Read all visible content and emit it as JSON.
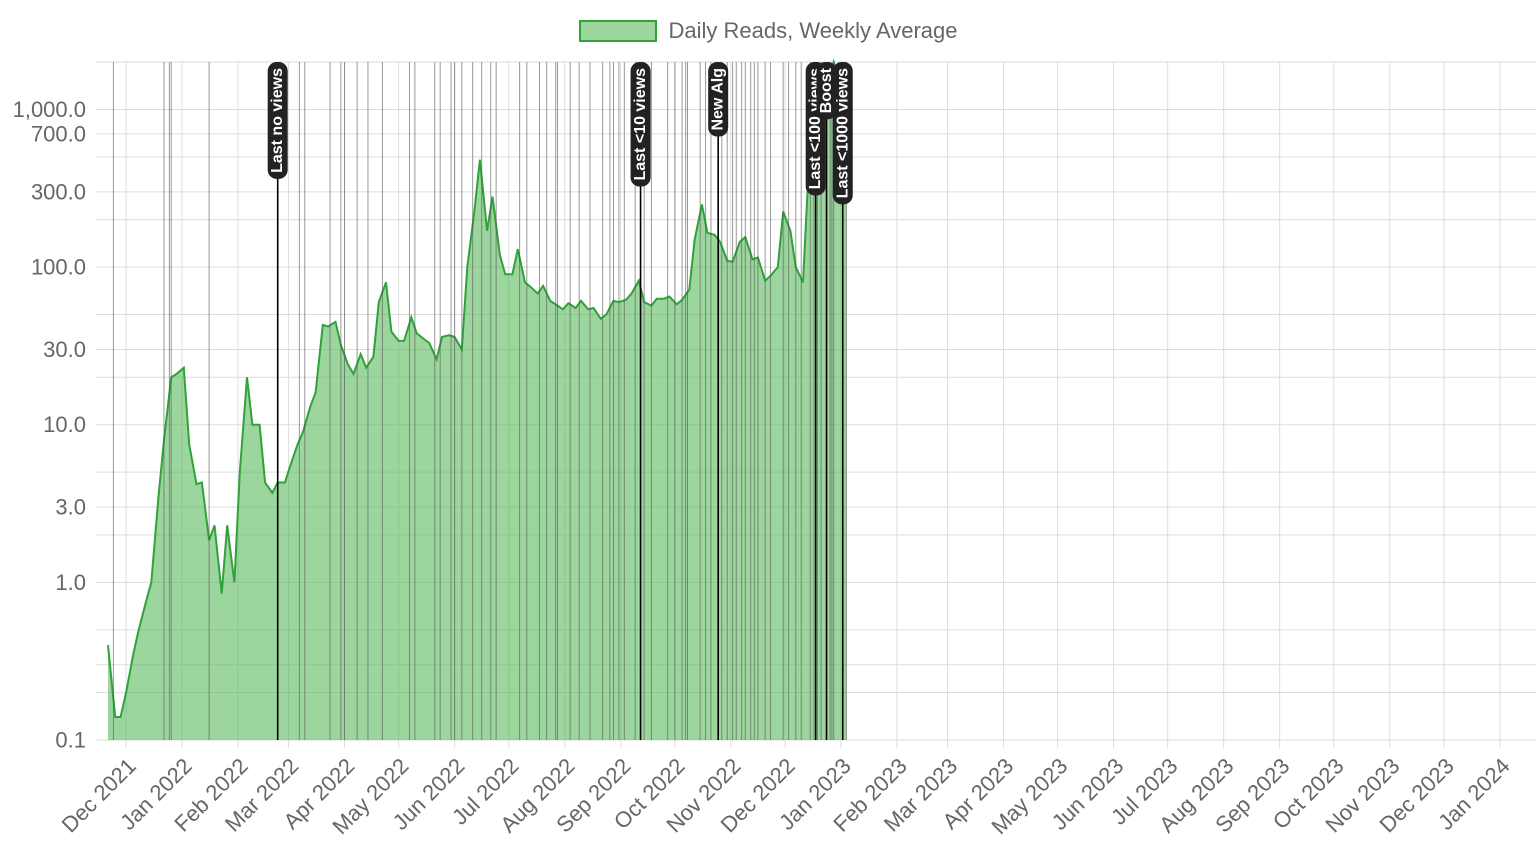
{
  "colors": {
    "fill": "rgba(76,178,80,0.55)",
    "stroke": "#2fa23a",
    "grid": "#dddddd",
    "axis_text": "#666666",
    "event_line": "#555555",
    "annotation_bg": "#222222",
    "annotation_text": "#ffffff"
  },
  "chart_data": {
    "type": "area",
    "y_scale": "log",
    "ylim": [
      0.1,
      2000
    ],
    "y_ticks": [
      {
        "value": 1000,
        "label": "1,000.0"
      },
      {
        "value": 700,
        "label": "700.0"
      },
      {
        "value": 300,
        "label": "300.0"
      },
      {
        "value": 100,
        "label": "100.0"
      },
      {
        "value": 30,
        "label": "30.0"
      },
      {
        "value": 10,
        "label": "10.0"
      },
      {
        "value": 3,
        "label": "3.0"
      },
      {
        "value": 1,
        "label": "1.0"
      },
      {
        "value": 0.1,
        "label": "0.1"
      }
    ],
    "x_range": [
      "2021-11-21",
      "2024-01-21"
    ],
    "x_ticks": [
      {
        "date": "2021-12-01",
        "label": "Dec 2021"
      },
      {
        "date": "2022-01-01",
        "label": "Jan 2022"
      },
      {
        "date": "2022-02-01",
        "label": "Feb 2022"
      },
      {
        "date": "2022-03-01",
        "label": "Mar 2022"
      },
      {
        "date": "2022-04-01",
        "label": "Apr 2022"
      },
      {
        "date": "2022-05-01",
        "label": "May 2022"
      },
      {
        "date": "2022-06-01",
        "label": "Jun 2022"
      },
      {
        "date": "2022-07-01",
        "label": "Jul 2022"
      },
      {
        "date": "2022-08-01",
        "label": "Aug 2022"
      },
      {
        "date": "2022-09-01",
        "label": "Sep 2022"
      },
      {
        "date": "2022-10-01",
        "label": "Oct 2022"
      },
      {
        "date": "2022-11-01",
        "label": "Nov 2022"
      },
      {
        "date": "2022-12-01",
        "label": "Dec 2022"
      },
      {
        "date": "2023-01-01",
        "label": "Jan 2023"
      },
      {
        "date": "2023-02-01",
        "label": "Feb 2023"
      },
      {
        "date": "2023-03-01",
        "label": "Mar 2023"
      },
      {
        "date": "2023-04-01",
        "label": "Apr 2023"
      },
      {
        "date": "2023-05-01",
        "label": "May 2023"
      },
      {
        "date": "2023-06-01",
        "label": "Jun 2023"
      },
      {
        "date": "2023-07-01",
        "label": "Jul 2023"
      },
      {
        "date": "2023-08-01",
        "label": "Aug 2023"
      },
      {
        "date": "2023-09-01",
        "label": "Sep 2023"
      },
      {
        "date": "2023-10-01",
        "label": "Oct 2023"
      },
      {
        "date": "2023-11-01",
        "label": "Nov 2023"
      },
      {
        "date": "2023-12-01",
        "label": "Dec 2023"
      },
      {
        "date": "2024-01-01",
        "label": "Jan 2024"
      }
    ],
    "series": [
      {
        "name": "Daily Reads, Weekly Average",
        "points": [
          [
            "2021-11-21",
            0.4
          ],
          [
            "2021-11-25",
            0.14
          ],
          [
            "2021-11-28",
            0.14
          ],
          [
            "2021-12-01",
            0.2
          ],
          [
            "2021-12-05",
            0.35
          ],
          [
            "2021-12-08",
            0.5
          ],
          [
            "2021-12-12",
            0.75
          ],
          [
            "2021-12-15",
            1.0
          ],
          [
            "2021-12-19",
            3.5
          ],
          [
            "2021-12-22",
            8.0
          ],
          [
            "2021-12-26",
            20
          ],
          [
            "2021-12-29",
            21
          ],
          [
            "2022-01-02",
            23
          ],
          [
            "2022-01-05",
            7.5
          ],
          [
            "2022-01-09",
            4.2
          ],
          [
            "2022-01-12",
            4.3
          ],
          [
            "2022-01-16",
            1.85
          ],
          [
            "2022-01-19",
            2.3
          ],
          [
            "2022-01-23",
            0.85
          ],
          [
            "2022-01-26",
            2.3
          ],
          [
            "2022-01-30",
            1.0
          ],
          [
            "2022-02-02",
            5.0
          ],
          [
            "2022-02-06",
            20
          ],
          [
            "2022-02-09",
            10
          ],
          [
            "2022-02-13",
            10
          ],
          [
            "2022-02-16",
            4.3
          ],
          [
            "2022-02-20",
            3.7
          ],
          [
            "2022-02-23",
            4.3
          ],
          [
            "2022-02-27",
            4.3
          ],
          [
            "2022-03-02",
            5.5
          ],
          [
            "2022-03-06",
            7.5
          ],
          [
            "2022-03-09",
            9.0
          ],
          [
            "2022-03-13",
            13
          ],
          [
            "2022-03-16",
            16
          ],
          [
            "2022-03-20",
            43
          ],
          [
            "2022-03-23",
            42
          ],
          [
            "2022-03-27",
            45
          ],
          [
            "2022-03-30",
            32
          ],
          [
            "2022-04-03",
            24
          ],
          [
            "2022-04-06",
            21
          ],
          [
            "2022-04-10",
            28
          ],
          [
            "2022-04-13",
            23
          ],
          [
            "2022-04-17",
            27
          ],
          [
            "2022-04-20",
            60
          ],
          [
            "2022-04-24",
            80
          ],
          [
            "2022-04-27",
            39
          ],
          [
            "2022-05-01",
            34
          ],
          [
            "2022-05-04",
            34
          ],
          [
            "2022-05-08",
            48
          ],
          [
            "2022-05-11",
            38
          ],
          [
            "2022-05-15",
            35
          ],
          [
            "2022-05-18",
            33
          ],
          [
            "2022-05-22",
            26
          ],
          [
            "2022-05-25",
            36
          ],
          [
            "2022-05-29",
            37
          ],
          [
            "2022-06-01",
            36
          ],
          [
            "2022-06-05",
            30
          ],
          [
            "2022-06-08",
            100
          ],
          [
            "2022-06-12",
            230
          ],
          [
            "2022-06-15",
            480
          ],
          [
            "2022-06-19",
            170
          ],
          [
            "2022-06-22",
            280
          ],
          [
            "2022-06-26",
            120
          ],
          [
            "2022-06-29",
            90
          ],
          [
            "2022-07-03",
            90
          ],
          [
            "2022-07-06",
            130
          ],
          [
            "2022-07-10",
            80
          ],
          [
            "2022-07-13",
            75
          ],
          [
            "2022-07-17",
            68
          ],
          [
            "2022-07-20",
            76
          ],
          [
            "2022-07-24",
            61
          ],
          [
            "2022-07-27",
            58
          ],
          [
            "2022-07-31",
            54
          ],
          [
            "2022-08-03",
            59
          ],
          [
            "2022-08-07",
            55
          ],
          [
            "2022-08-10",
            61
          ],
          [
            "2022-08-14",
            54
          ],
          [
            "2022-08-17",
            55
          ],
          [
            "2022-08-21",
            47
          ],
          [
            "2022-08-24",
            50
          ],
          [
            "2022-08-28",
            61
          ],
          [
            "2022-08-31",
            60
          ],
          [
            "2022-09-04",
            62
          ],
          [
            "2022-09-07",
            68
          ],
          [
            "2022-09-11",
            82
          ],
          [
            "2022-09-14",
            60
          ],
          [
            "2022-09-18",
            57
          ],
          [
            "2022-09-21",
            63
          ],
          [
            "2022-09-25",
            63
          ],
          [
            "2022-09-28",
            65
          ],
          [
            "2022-10-02",
            58
          ],
          [
            "2022-10-05",
            62
          ],
          [
            "2022-10-09",
            72
          ],
          [
            "2022-10-12",
            150
          ],
          [
            "2022-10-16",
            250
          ],
          [
            "2022-10-19",
            165
          ],
          [
            "2022-10-23",
            160
          ],
          [
            "2022-10-26",
            145
          ],
          [
            "2022-10-30",
            110
          ],
          [
            "2022-11-02",
            108
          ],
          [
            "2022-11-06",
            145
          ],
          [
            "2022-11-09",
            155
          ],
          [
            "2022-11-13",
            112
          ],
          [
            "2022-11-16",
            115
          ],
          [
            "2022-11-20",
            82
          ],
          [
            "2022-11-23",
            88
          ],
          [
            "2022-11-27",
            100
          ],
          [
            "2022-11-30",
            225
          ],
          [
            "2022-12-04",
            170
          ],
          [
            "2022-12-07",
            100
          ],
          [
            "2022-12-11",
            80
          ],
          [
            "2022-12-14",
            400
          ],
          [
            "2022-12-18",
            1400
          ],
          [
            "2022-12-21",
            1300
          ],
          [
            "2022-12-25",
            1500
          ],
          [
            "2022-12-28",
            2000
          ],
          [
            "2023-01-01",
            1400
          ],
          [
            "2023-01-04",
            650
          ]
        ]
      }
    ],
    "events": [
      {
        "date": "2021-11-24"
      },
      {
        "date": "2021-12-22"
      },
      {
        "date": "2021-12-25"
      },
      {
        "date": "2021-12-26"
      },
      {
        "date": "2022-01-16"
      },
      {
        "date": "2022-02-23",
        "label": "Last no views"
      },
      {
        "date": "2022-03-10"
      },
      {
        "date": "2022-03-24"
      },
      {
        "date": "2022-04-01"
      },
      {
        "date": "2022-04-08"
      },
      {
        "date": "2022-04-14"
      },
      {
        "date": "2022-05-07"
      },
      {
        "date": "2022-05-10"
      },
      {
        "date": "2022-05-21"
      },
      {
        "date": "2022-05-24"
      },
      {
        "date": "2022-06-01"
      },
      {
        "date": "2022-06-05"
      },
      {
        "date": "2022-06-11"
      },
      {
        "date": "2022-06-16"
      },
      {
        "date": "2022-06-21"
      },
      {
        "date": "2022-07-11"
      },
      {
        "date": "2022-07-18"
      },
      {
        "date": "2022-07-22"
      },
      {
        "date": "2022-07-28"
      },
      {
        "date": "2022-08-04"
      },
      {
        "date": "2022-08-09"
      },
      {
        "date": "2022-08-15"
      },
      {
        "date": "2022-08-22"
      },
      {
        "date": "2022-08-26"
      },
      {
        "date": "2022-08-31"
      },
      {
        "date": "2022-09-03"
      },
      {
        "date": "2022-09-09"
      },
      {
        "date": "2022-09-14"
      },
      {
        "date": "2022-09-27"
      },
      {
        "date": "2022-10-01"
      },
      {
        "date": "2022-10-05"
      },
      {
        "date": "2022-10-15"
      },
      {
        "date": "2022-10-18"
      },
      {
        "date": "2022-10-21"
      },
      {
        "date": "2022-10-27"
      },
      {
        "date": "2022-11-04"
      },
      {
        "date": "2022-11-07"
      },
      {
        "date": "2022-11-09"
      },
      {
        "date": "2022-11-12"
      },
      {
        "date": "2022-11-16"
      },
      {
        "date": "2022-11-20"
      },
      {
        "date": "2022-11-23"
      },
      {
        "date": "2022-11-30"
      },
      {
        "date": "2022-12-03"
      },
      {
        "date": "2022-12-10"
      },
      {
        "date": "2022-12-15"
      },
      {
        "date": "2022-12-17"
      },
      {
        "date": "2022-12-19"
      },
      {
        "date": "2022-12-21"
      },
      {
        "date": "2022-12-26"
      },
      {
        "date": "2022-12-28"
      },
      {
        "date": "2023-01-02"
      },
      {
        "date": "2023-01-04"
      },
      {
        "date": "2022-03-07"
      },
      {
        "date": "2022-03-30"
      },
      {
        "date": "2022-04-22"
      },
      {
        "date": "2022-05-30"
      },
      {
        "date": "2022-06-24"
      },
      {
        "date": "2022-07-07"
      },
      {
        "date": "2022-07-27"
      },
      {
        "date": "2022-08-28"
      },
      {
        "date": "2022-09-18"
      },
      {
        "date": "2022-10-07"
      },
      {
        "date": "2022-10-30"
      },
      {
        "date": "2022-11-02"
      },
      {
        "date": "2022-11-14"
      },
      {
        "date": "2022-12-07"
      },
      {
        "date": "2022-09-12",
        "label": "Last <10 views"
      },
      {
        "date": "2022-10-25",
        "label": "New Alg"
      },
      {
        "date": "2022-10-08"
      },
      {
        "date": "2022-12-18",
        "label": "Last <100 views"
      },
      {
        "date": "2022-12-24",
        "label": "Boost"
      },
      {
        "date": "2022-12-27"
      },
      {
        "date": "2023-01-02",
        "label": "Last <1000 views"
      }
    ]
  },
  "legend": {
    "label": "Daily Reads, Weekly Average"
  }
}
